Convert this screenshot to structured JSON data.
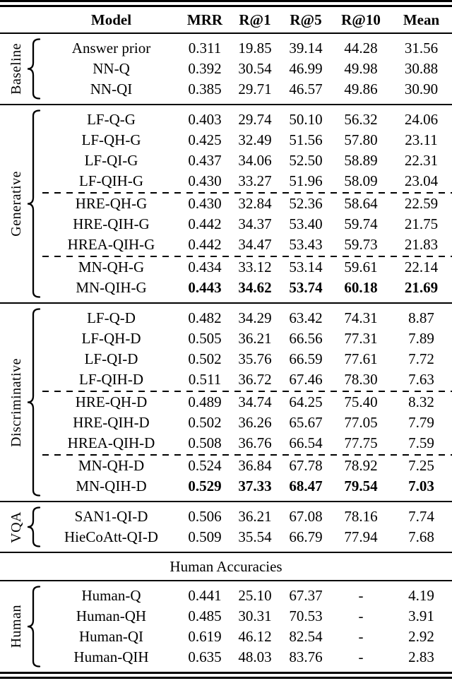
{
  "table": {
    "columns": [
      "Model",
      "MRR",
      "R@1",
      "R@5",
      "R@10",
      "Mean"
    ],
    "sections": [
      {
        "type": "group",
        "label": "Baseline",
        "rows": [
          {
            "cells": [
              "Answer prior",
              "0.311",
              "19.85",
              "39.14",
              "44.28",
              "31.56"
            ]
          },
          {
            "cells": [
              "NN-Q",
              "0.392",
              "30.54",
              "46.99",
              "49.98",
              "30.88"
            ]
          },
          {
            "cells": [
              "NN-QI",
              "0.385",
              "29.71",
              "46.57",
              "49.86",
              "30.90"
            ]
          }
        ]
      },
      {
        "type": "group",
        "label": "Generative",
        "dashed_after": [
          3,
          6
        ],
        "rows": [
          {
            "cells": [
              "LF-Q-G",
              "0.403",
              "29.74",
              "50.10",
              "56.32",
              "24.06"
            ]
          },
          {
            "cells": [
              "LF-QH-G",
              "0.425",
              "32.49",
              "51.56",
              "57.80",
              "23.11"
            ]
          },
          {
            "cells": [
              "LF-QI-G",
              "0.437",
              "34.06",
              "52.50",
              "58.89",
              "22.31"
            ]
          },
          {
            "cells": [
              "LF-QIH-G",
              "0.430",
              "33.27",
              "51.96",
              "58.09",
              "23.04"
            ]
          },
          {
            "cells": [
              "HRE-QH-G",
              "0.430",
              "32.84",
              "52.36",
              "58.64",
              "22.59"
            ]
          },
          {
            "cells": [
              "HRE-QIH-G",
              "0.442",
              "34.37",
              "53.40",
              "59.74",
              "21.75"
            ]
          },
          {
            "cells": [
              "HREA-QIH-G",
              "0.442",
              "34.47",
              "53.43",
              "59.73",
              "21.83"
            ]
          },
          {
            "cells": [
              "MN-QH-G",
              "0.434",
              "33.12",
              "53.14",
              "59.61",
              "22.14"
            ]
          },
          {
            "cells": [
              "MN-QIH-G",
              "0.443",
              "34.62",
              "53.74",
              "60.18",
              "21.69"
            ],
            "bold_values": true
          }
        ]
      },
      {
        "type": "group",
        "label": "Discriminative",
        "dashed_after": [
          3,
          6
        ],
        "rows": [
          {
            "cells": [
              "LF-Q-D",
              "0.482",
              "34.29",
              "63.42",
              "74.31",
              "8.87"
            ]
          },
          {
            "cells": [
              "LF-QH-D",
              "0.505",
              "36.21",
              "66.56",
              "77.31",
              "7.89"
            ]
          },
          {
            "cells": [
              "LF-QI-D",
              "0.502",
              "35.76",
              "66.59",
              "77.61",
              "7.72"
            ]
          },
          {
            "cells": [
              "LF-QIH-D",
              "0.511",
              "36.72",
              "67.46",
              "78.30",
              "7.63"
            ]
          },
          {
            "cells": [
              "HRE-QH-D",
              "0.489",
              "34.74",
              "64.25",
              "75.40",
              "8.32"
            ]
          },
          {
            "cells": [
              "HRE-QIH-D",
              "0.502",
              "36.26",
              "65.67",
              "77.05",
              "7.79"
            ]
          },
          {
            "cells": [
              "HREA-QIH-D",
              "0.508",
              "36.76",
              "66.54",
              "77.75",
              "7.59"
            ]
          },
          {
            "cells": [
              "MN-QH-D",
              "0.524",
              "36.84",
              "67.78",
              "78.92",
              "7.25"
            ]
          },
          {
            "cells": [
              "MN-QIH-D",
              "0.529",
              "37.33",
              "68.47",
              "79.54",
              "7.03"
            ],
            "bold_values": true
          }
        ]
      },
      {
        "type": "group",
        "label": "VQA",
        "rows": [
          {
            "cells": [
              "SAN1-QI-D",
              "0.506",
              "36.21",
              "67.08",
              "78.16",
              "7.74"
            ]
          },
          {
            "cells": [
              "HieCoAtt-QI-D",
              "0.509",
              "35.54",
              "66.79",
              "77.94",
              "7.68"
            ]
          }
        ]
      },
      {
        "type": "span",
        "text": "Human Accuracies"
      },
      {
        "type": "group",
        "label": "Human",
        "rows": [
          {
            "cells": [
              "Human-Q",
              "0.441",
              "25.10",
              "67.37",
              "-",
              "4.19"
            ]
          },
          {
            "cells": [
              "Human-QH",
              "0.485",
              "30.31",
              "70.53",
              "-",
              "3.91"
            ]
          },
          {
            "cells": [
              "Human-QI",
              "0.619",
              "46.12",
              "82.54",
              "-",
              "2.92"
            ]
          },
          {
            "cells": [
              "Human-QIH",
              "0.635",
              "48.03",
              "83.76",
              "-",
              "2.83"
            ]
          }
        ]
      }
    ]
  }
}
